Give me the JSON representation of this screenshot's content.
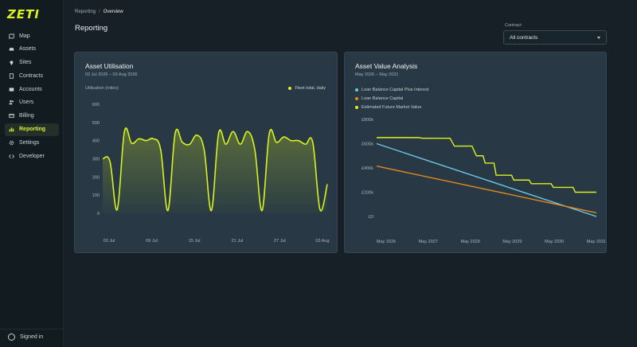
{
  "app": {
    "logo": "ZETI",
    "signed_in": "Signed in"
  },
  "sidebar": {
    "items": [
      {
        "label": "Map",
        "icon": "map-icon"
      },
      {
        "label": "Assets",
        "icon": "car-icon"
      },
      {
        "label": "Sites",
        "icon": "pin-icon"
      },
      {
        "label": "Contracts",
        "icon": "document-icon"
      },
      {
        "label": "Accounts",
        "icon": "card-icon"
      },
      {
        "label": "Users",
        "icon": "users-icon"
      },
      {
        "label": "Billing",
        "icon": "billing-icon"
      },
      {
        "label": "Reporting",
        "icon": "bar-chart-icon",
        "active": true
      },
      {
        "label": "Settings",
        "icon": "gear-icon"
      },
      {
        "label": "Developer",
        "icon": "code-icon"
      }
    ]
  },
  "breadcrumb": {
    "parent": "Reporting",
    "separator": "/",
    "current": "Overview"
  },
  "page_title": "Reporting",
  "contract": {
    "label": "Contract",
    "selected": "All contracts"
  },
  "colors": {
    "accent": "#d9f21e",
    "blue": "#6cc7e6",
    "orange": "#e08a1c"
  },
  "utilisation": {
    "title": "Asset Utilisation",
    "subtitle": "03 Jul 2026 – 03 Aug 2026",
    "ylabel": "Utilisation (miles)",
    "legend": "Fleet total, daily"
  },
  "value_analysis": {
    "title": "Asset Value Analysis",
    "subtitle": "May 2026 – May 2031",
    "legend": [
      "Loan Balance Capital Plus Interest",
      "Loan Balance Capital",
      "Estimated Future Market Value"
    ]
  },
  "chart_data": [
    {
      "type": "area",
      "title": "Asset Utilisation",
      "ylabel": "Utilisation (miles)",
      "ylim": [
        0,
        600
      ],
      "yticks": [
        "600",
        "500",
        "400",
        "300",
        "200",
        "100",
        "0"
      ],
      "xticks": [
        "03 Jul",
        "09 Jul",
        "15 Jul",
        "21 Jul",
        "27 Jul",
        "03 Aug"
      ],
      "grid": false,
      "legend_position": "top-right",
      "series": [
        {
          "name": "Fleet total, daily",
          "x": [
            0,
            1,
            2,
            3,
            4,
            5,
            6,
            7,
            8,
            9,
            10,
            11,
            12,
            13,
            14,
            15,
            16,
            17,
            18,
            19,
            20,
            21,
            22,
            23,
            24,
            25,
            26,
            27,
            28,
            29,
            30,
            31
          ],
          "values": [
            300,
            285,
            20,
            450,
            385,
            410,
            400,
            410,
            350,
            15,
            440,
            390,
            380,
            430,
            350,
            15,
            440,
            380,
            450,
            380,
            450,
            350,
            15,
            440,
            390,
            420,
            400,
            400,
            380,
            390,
            20,
            160
          ]
        }
      ]
    },
    {
      "type": "line",
      "title": "Asset Value Analysis",
      "ylim": [
        0,
        800
      ],
      "yticks": [
        "£800k",
        "£600k",
        "£400k",
        "£200k",
        "£0"
      ],
      "xticks": [
        "May 2026",
        "May 2027",
        "May 2028",
        "May 2029",
        "May 2030",
        "May 2031"
      ],
      "grid": false,
      "legend_position": "top-left",
      "series": [
        {
          "name": "Loan Balance Capital Plus Interest",
          "color": "#6cc7e6",
          "x": [
            2026.33,
            2031.33
          ],
          "values": [
            600,
            0
          ]
        },
        {
          "name": "Loan Balance Capital",
          "color": "#e08a1c",
          "x": [
            2026.33,
            2031.33
          ],
          "values": [
            415,
            30
          ]
        },
        {
          "name": "Estimated Future Market Value",
          "color": "#d9f21e",
          "x": [
            2026.33,
            2027.3,
            2027.35,
            2028.0,
            2028.1,
            2028.5,
            2028.6,
            2028.75,
            2028.8,
            2029.0,
            2029.05,
            2029.4,
            2029.45,
            2029.8,
            2029.85,
            2030.3,
            2030.35,
            2030.8,
            2030.85,
            2031.33
          ],
          "values": [
            650,
            650,
            645,
            645,
            580,
            580,
            500,
            500,
            440,
            440,
            340,
            340,
            300,
            300,
            270,
            270,
            240,
            240,
            200,
            200
          ]
        }
      ]
    }
  ]
}
